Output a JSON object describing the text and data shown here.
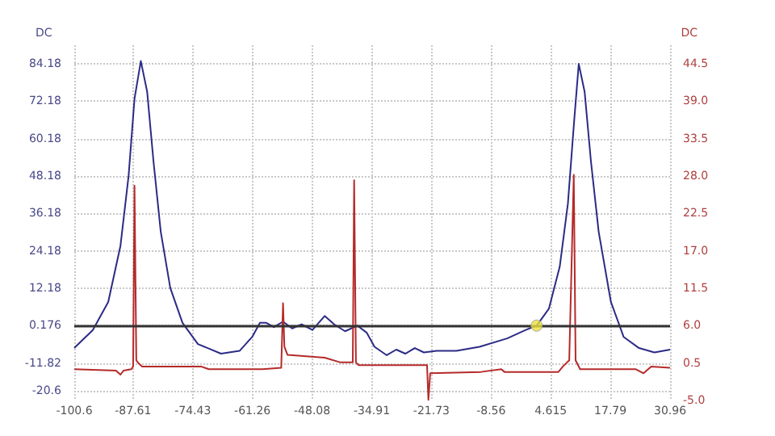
{
  "chart_data": {
    "type": "line",
    "ylabel": "DC",
    "y2label": "DC",
    "xlim": [
      -100.6,
      30.96
    ],
    "xticks": [
      -100.6,
      -87.61,
      -74.43,
      -61.26,
      -48.08,
      -34.91,
      -21.73,
      -8.56,
      4.615,
      17.79,
      30.96
    ],
    "ylim": [
      -23.82,
      90.18
    ],
    "yticks": [
      84.18,
      72.18,
      60.18,
      48.18,
      36.18,
      24.18,
      12.18,
      0.176,
      -11.82,
      -20.6
    ],
    "y2lim": [
      -5.0,
      47.25
    ],
    "y2ticks": [
      44.5,
      {
        "value": 39,
        "label": "39.0"
      },
      33.5,
      {
        "value": 28,
        "label": "28.0"
      },
      22.5,
      {
        "value": 17,
        "label": "17.0"
      },
      11.5,
      {
        "value": 6,
        "label": "6.0"
      },
      0.5,
      {
        "value": -5,
        "label": "-5.0"
      }
    ],
    "grid": true,
    "marker": "none",
    "line_style": "solid",
    "ref_lines": [
      {
        "axis": "y",
        "value": 0.176,
        "color": "#333333"
      }
    ],
    "series": [
      {
        "color": "#2b2b86",
        "x": [
          -100.6,
          -96.5,
          -93.1,
          -90.4,
          -88.6,
          -87.3,
          -85.9,
          -84.5,
          -83.1,
          -81.5,
          -79.4,
          -76.7,
          -73.3,
          -68.2,
          -64.1,
          -61.3,
          -59.6,
          -58.2,
          -56.5,
          -54.5,
          -52.5,
          -50.4,
          -48.0,
          -45.3,
          -43.2,
          -40.8,
          -38.1,
          -36.0,
          -34.3,
          -31.6,
          -29.5,
          -27.5,
          -25.4,
          -23.4,
          -20.6,
          -16.2,
          -11.1,
          -5.0,
          -0.9,
          1.5,
          4.2,
          6.6,
          8.4,
          9.8,
          10.8,
          12.1,
          13.5,
          15.2,
          17.9,
          20.7,
          24.1,
          27.5,
          30.96
        ],
        "values": [
          -7.0,
          -1.2,
          7.8,
          25.8,
          48.3,
          73.0,
          85.1,
          75.2,
          52.8,
          30.3,
          12.3,
          1.1,
          -5.7,
          -8.8,
          -7.9,
          -3.4,
          1.1,
          1.1,
          -0.3,
          1.5,
          -0.7,
          0.6,
          -1.2,
          3.3,
          0.6,
          -1.6,
          0.2,
          -2.1,
          -6.6,
          -9.3,
          -7.5,
          -8.8,
          -7.0,
          -8.4,
          -7.9,
          -7.9,
          -6.6,
          -3.9,
          -1.2,
          0.2,
          5.6,
          19.1,
          39.3,
          66.2,
          84.2,
          75.2,
          52.8,
          30.3,
          7.8,
          -3.4,
          -7.0,
          -8.4,
          -7.5
        ]
      },
      {
        "color": "#b52a2a",
        "axis": "y2",
        "x": [
          -100.6,
          -91.4,
          -90.4,
          -89.7,
          -88.0,
          -87.6,
          -87.3,
          -86.9,
          -86.3,
          -85.6,
          -72.6,
          -70.9,
          -59.0,
          -54.9,
          -54.5,
          -54.2,
          -53.5,
          -45.3,
          -41.8,
          -39.1,
          -38.8,
          -38.4,
          -37.8,
          -22.7,
          -22.4,
          -22.0,
          -10.8,
          -6.3,
          -5.6,
          6.3,
          7.3,
          8.7,
          9.7,
          10.1,
          11.1,
          23.4,
          25.1,
          26.8,
          30.96
        ],
        "values": [
          -0.4,
          -0.6,
          -1.2,
          -0.6,
          -0.4,
          0.0,
          26.6,
          0.9,
          0.4,
          0.0,
          0.0,
          -0.4,
          -0.4,
          -0.2,
          9.3,
          2.9,
          1.7,
          1.3,
          0.6,
          0.6,
          27.4,
          0.6,
          0.2,
          0.2,
          -4.9,
          -1.0,
          -0.8,
          -0.4,
          -0.8,
          -0.8,
          0.0,
          0.9,
          28.2,
          0.9,
          -0.4,
          -0.4,
          -1.0,
          0.0,
          -0.2
        ]
      },
      {
        "type": "scatter",
        "marker": "circle",
        "color": "#e8e040",
        "x": [
          1.5
        ],
        "values": [
          0.2
        ]
      }
    ]
  }
}
